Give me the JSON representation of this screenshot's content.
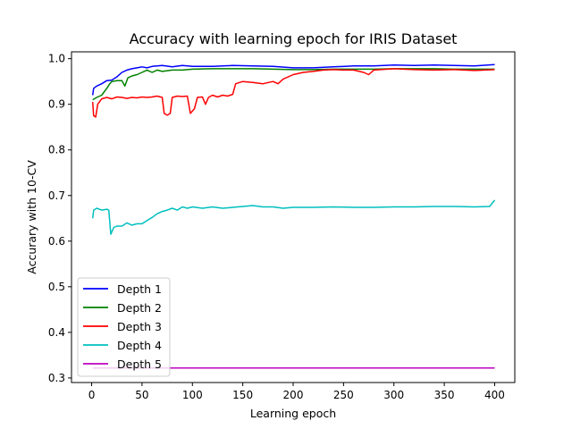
{
  "chart_data": {
    "type": "line",
    "title": "Accuracy with learning epoch for IRIS Dataset",
    "xlabel": "Learning epoch",
    "ylabel": "Accurary with 10-CV",
    "xlim": [
      -20,
      420
    ],
    "ylim": [
      0.29,
      1.015
    ],
    "xticks": [
      0,
      50,
      100,
      150,
      200,
      250,
      300,
      350,
      400
    ],
    "yticks": [
      0.3,
      0.4,
      0.5,
      0.6,
      0.7,
      0.8,
      0.9,
      1.0
    ],
    "ytick_labels": [
      "0.3",
      "0.4",
      "0.5",
      "0.6",
      "0.7",
      "0.8",
      "0.9",
      "1.0"
    ],
    "grid": false,
    "legend_position": "lower-left",
    "series": [
      {
        "name": "Depth 1",
        "color": "#0000ff",
        "points": [
          [
            1,
            0.92
          ],
          [
            2,
            0.935
          ],
          [
            5,
            0.94
          ],
          [
            10,
            0.945
          ],
          [
            15,
            0.952
          ],
          [
            20,
            0.953
          ],
          [
            25,
            0.96
          ],
          [
            30,
            0.97
          ],
          [
            35,
            0.975
          ],
          [
            40,
            0.978
          ],
          [
            45,
            0.98
          ],
          [
            50,
            0.982
          ],
          [
            55,
            0.98
          ],
          [
            60,
            0.983
          ],
          [
            70,
            0.985
          ],
          [
            80,
            0.982
          ],
          [
            90,
            0.985
          ],
          [
            100,
            0.983
          ],
          [
            120,
            0.983
          ],
          [
            140,
            0.985
          ],
          [
            160,
            0.984
          ],
          [
            180,
            0.983
          ],
          [
            200,
            0.98
          ],
          [
            220,
            0.98
          ],
          [
            240,
            0.982
          ],
          [
            260,
            0.984
          ],
          [
            280,
            0.984
          ],
          [
            300,
            0.986
          ],
          [
            320,
            0.985
          ],
          [
            340,
            0.986
          ],
          [
            360,
            0.985
          ],
          [
            380,
            0.984
          ],
          [
            400,
            0.987
          ]
        ]
      },
      {
        "name": "Depth 2",
        "color": "#008000",
        "points": [
          [
            1,
            0.91
          ],
          [
            5,
            0.915
          ],
          [
            10,
            0.92
          ],
          [
            15,
            0.935
          ],
          [
            18,
            0.945
          ],
          [
            20,
            0.95
          ],
          [
            25,
            0.952
          ],
          [
            30,
            0.952
          ],
          [
            33,
            0.94
          ],
          [
            36,
            0.958
          ],
          [
            40,
            0.962
          ],
          [
            45,
            0.965
          ],
          [
            50,
            0.97
          ],
          [
            55,
            0.975
          ],
          [
            60,
            0.97
          ],
          [
            65,
            0.975
          ],
          [
            70,
            0.972
          ],
          [
            80,
            0.975
          ],
          [
            90,
            0.975
          ],
          [
            100,
            0.977
          ],
          [
            120,
            0.978
          ],
          [
            140,
            0.978
          ],
          [
            160,
            0.978
          ],
          [
            180,
            0.977
          ],
          [
            200,
            0.976
          ],
          [
            220,
            0.976
          ],
          [
            240,
            0.977
          ],
          [
            260,
            0.977
          ],
          [
            280,
            0.977
          ],
          [
            300,
            0.978
          ],
          [
            320,
            0.978
          ],
          [
            340,
            0.978
          ],
          [
            360,
            0.977
          ],
          [
            380,
            0.977
          ],
          [
            400,
            0.977
          ]
        ]
      },
      {
        "name": "Depth 3",
        "color": "#ff0000",
        "points": [
          [
            1,
            0.905
          ],
          [
            2,
            0.875
          ],
          [
            4,
            0.872
          ],
          [
            6,
            0.9
          ],
          [
            10,
            0.912
          ],
          [
            15,
            0.915
          ],
          [
            20,
            0.912
          ],
          [
            25,
            0.916
          ],
          [
            30,
            0.915
          ],
          [
            35,
            0.913
          ],
          [
            40,
            0.915
          ],
          [
            45,
            0.914
          ],
          [
            50,
            0.916
          ],
          [
            55,
            0.915
          ],
          [
            60,
            0.916
          ],
          [
            65,
            0.918
          ],
          [
            70,
            0.915
          ],
          [
            72,
            0.88
          ],
          [
            75,
            0.876
          ],
          [
            78,
            0.88
          ],
          [
            80,
            0.915
          ],
          [
            85,
            0.918
          ],
          [
            90,
            0.917
          ],
          [
            95,
            0.918
          ],
          [
            98,
            0.88
          ],
          [
            102,
            0.89
          ],
          [
            105,
            0.915
          ],
          [
            110,
            0.916
          ],
          [
            113,
            0.9
          ],
          [
            116,
            0.915
          ],
          [
            120,
            0.92
          ],
          [
            125,
            0.916
          ],
          [
            130,
            0.92
          ],
          [
            135,
            0.918
          ],
          [
            140,
            0.922
          ],
          [
            143,
            0.945
          ],
          [
            150,
            0.95
          ],
          [
            160,
            0.948
          ],
          [
            170,
            0.945
          ],
          [
            180,
            0.95
          ],
          [
            185,
            0.945
          ],
          [
            190,
            0.955
          ],
          [
            200,
            0.965
          ],
          [
            210,
            0.97
          ],
          [
            220,
            0.972
          ],
          [
            230,
            0.975
          ],
          [
            240,
            0.976
          ],
          [
            250,
            0.975
          ],
          [
            260,
            0.975
          ],
          [
            270,
            0.97
          ],
          [
            275,
            0.965
          ],
          [
            280,
            0.975
          ],
          [
            300,
            0.978
          ],
          [
            320,
            0.976
          ],
          [
            340,
            0.975
          ],
          [
            360,
            0.976
          ],
          [
            380,
            0.974
          ],
          [
            400,
            0.976
          ]
        ]
      },
      {
        "name": "Depth 4",
        "color": "#00bfbf",
        "points": [
          [
            1,
            0.65
          ],
          [
            2,
            0.668
          ],
          [
            5,
            0.672
          ],
          [
            10,
            0.668
          ],
          [
            15,
            0.67
          ],
          [
            17,
            0.668
          ],
          [
            19,
            0.615
          ],
          [
            22,
            0.63
          ],
          [
            25,
            0.633
          ],
          [
            30,
            0.633
          ],
          [
            35,
            0.64
          ],
          [
            40,
            0.635
          ],
          [
            45,
            0.638
          ],
          [
            50,
            0.638
          ],
          [
            55,
            0.645
          ],
          [
            60,
            0.652
          ],
          [
            65,
            0.66
          ],
          [
            70,
            0.665
          ],
          [
            75,
            0.668
          ],
          [
            80,
            0.672
          ],
          [
            85,
            0.668
          ],
          [
            90,
            0.675
          ],
          [
            95,
            0.672
          ],
          [
            100,
            0.675
          ],
          [
            110,
            0.672
          ],
          [
            120,
            0.675
          ],
          [
            130,
            0.672
          ],
          [
            140,
            0.674
          ],
          [
            150,
            0.676
          ],
          [
            160,
            0.678
          ],
          [
            170,
            0.675
          ],
          [
            180,
            0.675
          ],
          [
            190,
            0.672
          ],
          [
            200,
            0.674
          ],
          [
            220,
            0.674
          ],
          [
            240,
            0.675
          ],
          [
            260,
            0.674
          ],
          [
            280,
            0.674
          ],
          [
            300,
            0.675
          ],
          [
            320,
            0.675
          ],
          [
            340,
            0.676
          ],
          [
            360,
            0.676
          ],
          [
            380,
            0.675
          ],
          [
            395,
            0.676
          ],
          [
            400,
            0.69
          ]
        ]
      },
      {
        "name": "Depth 5",
        "color": "#bf00bf",
        "points": [
          [
            1,
            0.322
          ],
          [
            400,
            0.322
          ]
        ]
      }
    ]
  }
}
